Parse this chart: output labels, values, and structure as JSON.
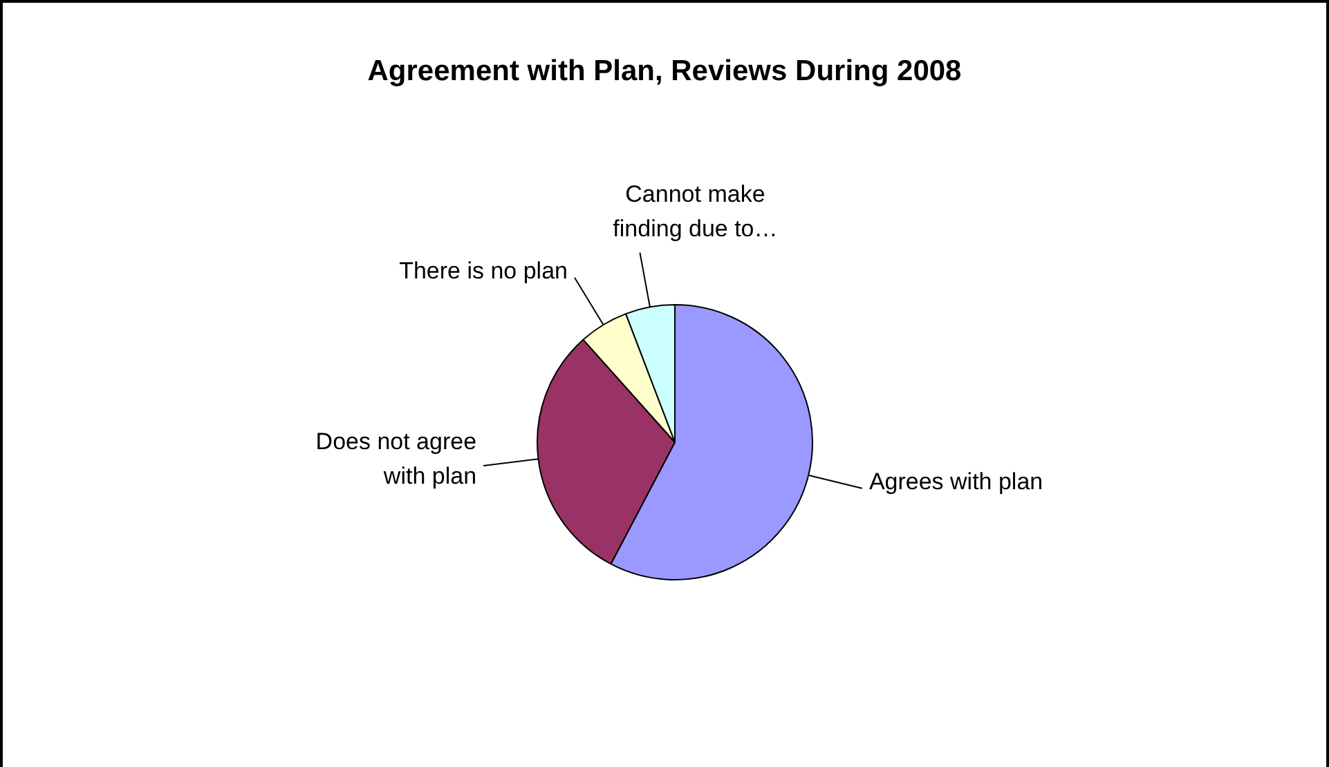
{
  "chart_data": {
    "type": "pie",
    "title": "Agreement with Plan, Reviews During 2008",
    "categories": [
      "Agrees with plan",
      "Does not agree with plan",
      "There is no plan",
      "Cannot make finding due to…"
    ],
    "values": [
      57.7,
      30.7,
      5.8,
      5.8
    ],
    "colors": [
      "#9999ff",
      "#993366",
      "#ffffcc",
      "#ccffff"
    ],
    "legend": false
  }
}
